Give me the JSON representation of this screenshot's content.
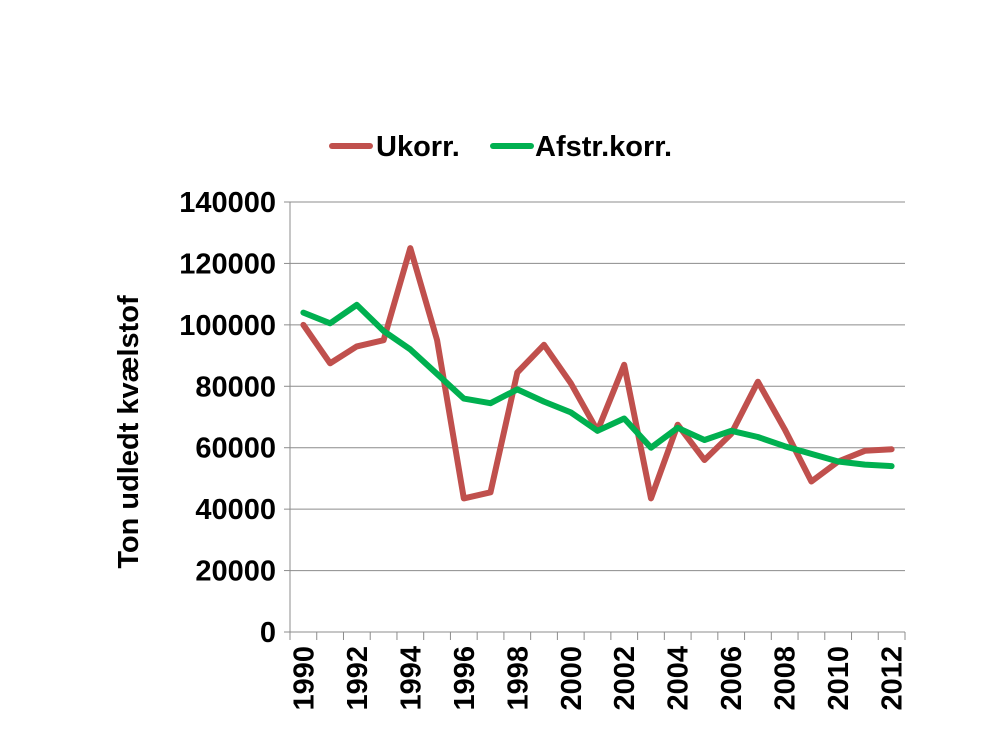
{
  "chart_data": {
    "type": "line",
    "title": "",
    "xlabel": "",
    "ylabel": "Ton udledt kvælstof",
    "ylim": [
      0,
      140000
    ],
    "y_ticks": [
      "0",
      "20000",
      "40000",
      "60000",
      "80000",
      "100000",
      "120000",
      "140000"
    ],
    "x_tick_labels": [
      "1990",
      "1992",
      "1994",
      "1996",
      "1998",
      "2000",
      "2002",
      "2004",
      "2006",
      "2008",
      "2010",
      "2012"
    ],
    "x": [
      1990,
      1991,
      1992,
      1993,
      1994,
      1995,
      1996,
      1997,
      1998,
      1999,
      2000,
      2001,
      2002,
      2003,
      2004,
      2005,
      2006,
      2007,
      2008,
      2009,
      2010,
      2011,
      2012
    ],
    "grid": true,
    "legend_position": "top",
    "series": [
      {
        "name": "Ukorr.",
        "color": "#c0504d",
        "values": [
          100000,
          87500,
          93000,
          95000,
          125000,
          95000,
          43500,
          45500,
          84500,
          93500,
          81000,
          65500,
          87000,
          43500,
          67500,
          56000,
          64500,
          81500,
          66000,
          49000,
          55500,
          59000,
          59500
        ]
      },
      {
        "name": "Afstr.korr.",
        "color": "#00b050",
        "values": [
          104000,
          100500,
          106500,
          98000,
          92000,
          84000,
          76000,
          74500,
          79000,
          75000,
          71500,
          65500,
          69500,
          60000,
          66500,
          62500,
          65500,
          63500,
          60500,
          58000,
          55500,
          54500,
          54000
        ]
      }
    ]
  }
}
